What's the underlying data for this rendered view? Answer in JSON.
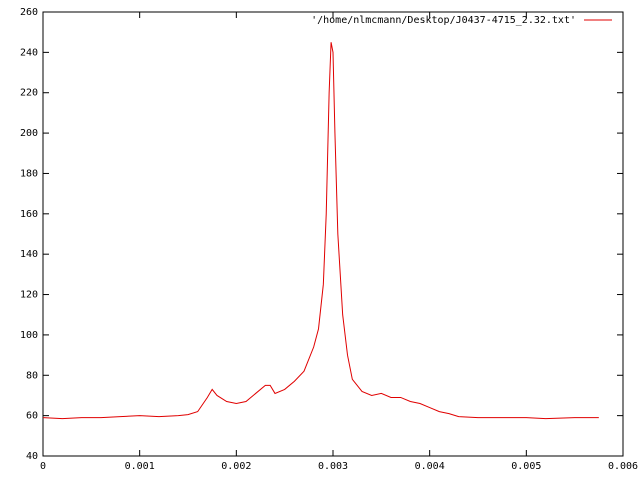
{
  "chart_data": {
    "type": "line",
    "x": [
      0,
      0.0002,
      0.0004,
      0.0006,
      0.0008,
      0.001,
      0.0012,
      0.0014,
      0.0015,
      0.0016,
      0.0017,
      0.00175,
      0.0018,
      0.0019,
      0.002,
      0.0021,
      0.0022,
      0.0023,
      0.00235,
      0.0024,
      0.0025,
      0.0026,
      0.0027,
      0.0028,
      0.00285,
      0.0029,
      0.00293,
      0.00296,
      0.00298,
      0.003,
      0.00302,
      0.00305,
      0.0031,
      0.00315,
      0.0032,
      0.0033,
      0.0034,
      0.0035,
      0.0036,
      0.0037,
      0.0038,
      0.0039,
      0.004,
      0.0041,
      0.0042,
      0.0043,
      0.0045,
      0.0047,
      0.005,
      0.0052,
      0.0055,
      0.00575
    ],
    "series": [
      {
        "name": "'/home/nlmcmann/Desktop/J0437-4715_2.32.txt'",
        "color": "#e00000",
        "values": [
          59,
          58.5,
          59,
          59,
          59.5,
          60,
          59.5,
          60,
          60.5,
          62,
          69,
          73,
          70,
          67,
          66,
          67,
          71,
          75,
          75,
          71,
          73,
          77,
          82,
          94,
          103,
          125,
          160,
          220,
          245,
          240,
          200,
          150,
          110,
          90,
          78,
          72,
          70,
          71,
          69,
          69,
          67,
          66,
          64,
          62,
          61,
          59.5,
          59,
          59,
          59,
          58.5,
          59,
          59
        ]
      }
    ],
    "xlim": [
      0,
      0.006
    ],
    "xticks": [
      0,
      0.001,
      0.002,
      0.003,
      0.004,
      0.005,
      0.006
    ],
    "ylim": [
      40,
      260
    ],
    "yticks": [
      40,
      60,
      80,
      100,
      120,
      140,
      160,
      180,
      200,
      220,
      240,
      260
    ],
    "legend": "top-right"
  }
}
